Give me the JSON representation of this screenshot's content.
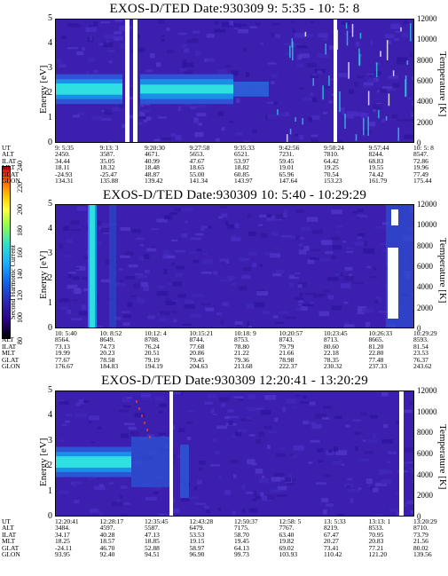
{
  "colorbar": {
    "label": "Second Harmonic Current",
    "ticks": [
      "240",
      "220",
      "200",
      "180",
      "160",
      "140",
      "120",
      "100",
      "80"
    ]
  },
  "chart_data": [
    {
      "type": "heatmap",
      "title": "EXOS-D/TED   Date:930309   9: 5:35 - 10: 5: 8",
      "ylabel": "Energy [eV]",
      "y2label": "Temperature [K]",
      "ylim": [
        0,
        5
      ],
      "y2lim": [
        0,
        12000
      ],
      "yticks": [
        "5",
        "4",
        "3",
        "2",
        "1",
        "0"
      ],
      "y2ticks": [
        "12000",
        "10000",
        "8000",
        "6000",
        "4000",
        "2000",
        "0"
      ],
      "table": {
        "labels": [
          "UT",
          "ALT",
          "ILAT",
          "MLT",
          "GLAT",
          "GLON"
        ],
        "columns": [
          [
            "9: 5:35",
            "2450.",
            "34.44",
            "18.11",
            "-24.93",
            "134.31"
          ],
          [
            "9:13: 3",
            "3587.",
            "35.05",
            "18.32",
            "-25.47",
            "135.88"
          ],
          [
            "9:20:30",
            "4671.",
            "40.99",
            "18.48",
            "48.87",
            "139.42"
          ],
          [
            "9:27:58",
            "5653.",
            "47.67",
            "18.65",
            "55.00",
            "141.34"
          ],
          [
            "9:35:33",
            "6521.",
            "53.97",
            "18.82",
            "60.85",
            "143.97"
          ],
          [
            "9:42:56",
            "7231.",
            "59.45",
            "19.01",
            "65.96",
            "147.64"
          ],
          [
            "9:50:24",
            "7810.",
            "64.42",
            "19.25",
            "70.54",
            "153.23"
          ],
          [
            "9:57:44",
            "8244.",
            "68.83",
            "19.55",
            "74.42",
            "161.79"
          ],
          [
            "10: 5: 8",
            "8547.",
            "72.86",
            "19.96",
            "77.49",
            "175.44"
          ]
        ]
      }
    },
    {
      "type": "heatmap",
      "title": "EXOS-D/TED   Date:930309   10: 5:40 - 10:29:29",
      "ylabel": "Energy [eV]",
      "y2label": "Temperature [K]",
      "ylim": [
        0,
        5
      ],
      "y2lim": [
        0,
        12000
      ],
      "yticks": [
        "5",
        "4",
        "3",
        "2",
        "1",
        "0"
      ],
      "y2ticks": [
        "12000",
        "10000",
        "8000",
        "6000",
        "4000",
        "2000",
        "0"
      ],
      "table": {
        "labels": [
          "UT",
          "ALT",
          "ILAT",
          "MLT",
          "GLAT",
          "GLON"
        ],
        "columns": [
          [
            "10: 5:40",
            "8564.",
            "73.13",
            "19.99",
            "77.67",
            "176.67"
          ],
          [
            "10: 8:52",
            "8649.",
            "74.73",
            "20.23",
            "78.58",
            "184.83"
          ],
          [
            "10:12: 4",
            "8708.",
            "76.24",
            "20.51",
            "79.19",
            "194.19"
          ],
          [
            "10:15:21",
            "8744.",
            "77.68",
            "20.86",
            "79.45",
            "204.63"
          ],
          [
            "10:18: 9",
            "8753.",
            "78.80",
            "21.22",
            "79.36",
            "213.68"
          ],
          [
            "10:20:57",
            "8743.",
            "79.79",
            "21.66",
            "78.98",
            "222.37"
          ],
          [
            "10:23:45",
            "8713.",
            "80.60",
            "22.18",
            "78.35",
            "230.32"
          ],
          [
            "10:26:33",
            "8665.",
            "81.20",
            "22.80",
            "77.48",
            "237.33"
          ],
          [
            "10:29:29",
            "8593.",
            "81.54",
            "23.53",
            "76.37",
            "243.62"
          ]
        ]
      }
    },
    {
      "type": "heatmap",
      "title": "EXOS-D/TED   Date:930309   12:20:41 - 13:20:29",
      "ylabel": "Energy [eV]",
      "y2label": "Temperature [K]",
      "ylim": [
        0,
        5
      ],
      "y2lim": [
        0,
        12000
      ],
      "yticks": [
        "5",
        "4",
        "3",
        "2",
        "1",
        "0"
      ],
      "y2ticks": [
        "12000",
        "10000",
        "8000",
        "6000",
        "4000",
        "2000",
        "0"
      ],
      "table": {
        "labels": [
          "UT",
          "ALT",
          "ILAT",
          "MLT",
          "GLAT",
          "GLON"
        ],
        "columns": [
          [
            "12:20:41",
            "3484.",
            "34.17",
            "18.25",
            "-24.11",
            "93.95"
          ],
          [
            "12:28:17",
            "4597.",
            "40.28",
            "18.57",
            "46.70",
            "92.40"
          ],
          [
            "12:35:45",
            "5587.",
            "47.13",
            "18.85",
            "52.88",
            "94.51"
          ],
          [
            "12:43:28",
            "6479.",
            "53.53",
            "19.15",
            "58.97",
            "96.90"
          ],
          [
            "12:50:37",
            "7175.",
            "58.70",
            "19.45",
            "64.13",
            "99.73"
          ],
          [
            "12:58: 5",
            "7767.",
            "63.40",
            "19.82",
            "69.02",
            "103.93"
          ],
          [
            "13: 5:33",
            "8219.",
            "67.47",
            "20.27",
            "73.41",
            "110.42"
          ],
          [
            "13:13: 1",
            "8533.",
            "70.95",
            "20.83",
            "77.21",
            "121.20"
          ],
          [
            "13:20:29",
            "8710.",
            "73.79",
            "21.56",
            "80.02",
            "139.56"
          ]
        ]
      }
    }
  ],
  "colors": {
    "background": "#3d1fb0",
    "band_core": "#2fe0e0",
    "band_mid": "#1a8fe8",
    "band_edge": "#2a5ad8",
    "gap": "#ffffff"
  }
}
